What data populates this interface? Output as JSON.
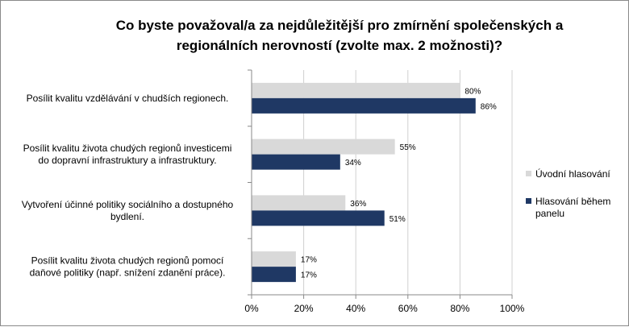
{
  "chart_data": {
    "type": "bar",
    "orientation": "horizontal",
    "title_lines": [
      "Co byste považoval/a za nejdůležitější pro zmírnění společenských a",
      "regionálních nerovností (zvolte max. 2 možnosti)?"
    ],
    "categories": [
      [
        "Posílit kvalitu vzdělávání v chudších regionech."
      ],
      [
        "Posílit kvalitu života chudých regionů investicemi",
        "do dopravní infrastruktury a infrastruktury."
      ],
      [
        "Vytvoření účinné politiky sociálního a dostupného",
        "bydlení."
      ],
      [
        "Posílit kvalitu života chudých regionů pomocí",
        "daňové politiky (např. snížení zdanění práce)."
      ]
    ],
    "series": [
      {
        "name": "Úvodní hlasování",
        "legend_lines": [
          "Úvodní hlasování"
        ],
        "color": "#d9d9d9",
        "values": [
          80,
          55,
          36,
          17
        ],
        "labels": [
          "80%",
          "55%",
          "36%",
          "17%"
        ]
      },
      {
        "name": "Hlasování během panelu",
        "legend_lines": [
          "Hlasování během",
          "panelu"
        ],
        "color": "#1f3864",
        "values": [
          86,
          34,
          51,
          17
        ],
        "labels": [
          "86%",
          "34%",
          "51%",
          "17%"
        ]
      }
    ],
    "xlim": [
      0,
      100
    ],
    "xticks": [
      0,
      20,
      40,
      60,
      80,
      100
    ],
    "xtick_labels": [
      "0%",
      "20%",
      "40%",
      "60%",
      "80%",
      "100%"
    ],
    "grid": true,
    "legend_position": "right"
  }
}
